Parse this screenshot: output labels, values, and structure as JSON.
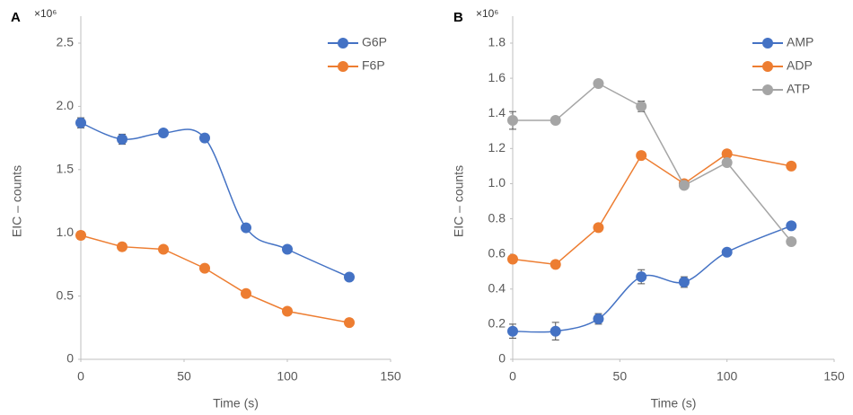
{
  "chart_data": [
    {
      "type": "line",
      "panel_label": "A",
      "y_multiplier": "×10⁶",
      "x_label": "Time (s)",
      "y_label": "EIC – counts",
      "x": [
        0,
        20,
        40,
        60,
        80,
        100,
        130
      ],
      "series": [
        {
          "name": "G6P",
          "color": "#4472c4",
          "smooth": true,
          "values": [
            1.87,
            1.74,
            1.79,
            1.75,
            1.04,
            0.87,
            0.65
          ],
          "errors": [
            0.04,
            0.04,
            0.02,
            0.03,
            0.01,
            0.01,
            0.01
          ]
        },
        {
          "name": "F6P",
          "color": "#ed7d31",
          "smooth": false,
          "values": [
            0.98,
            0.89,
            0.87,
            0.72,
            0.52,
            0.38,
            0.29
          ],
          "errors": [
            0.03,
            0.03,
            0.02,
            0.01,
            0.01,
            0.01,
            0.01
          ]
        }
      ],
      "xlim": [
        0,
        150
      ],
      "xticks": [
        0,
        50,
        100,
        150
      ],
      "ylim": [
        0,
        2.5
      ],
      "yticks": [
        0,
        0.5,
        {
          "value": 1,
          "label": "1.0"
        },
        1.5,
        {
          "value": 2,
          "label": "2.0"
        },
        2.5
      ],
      "grid": false,
      "legend": "upper right"
    },
    {
      "type": "line",
      "panel_label": "B",
      "y_multiplier": "×10⁶",
      "x_label": "Time (s)",
      "y_label": "EIC – counts",
      "x": [
        0,
        20,
        40,
        60,
        80,
        100,
        130
      ],
      "series": [
        {
          "name": "AMP",
          "color": "#4472c4",
          "smooth": true,
          "values": [
            0.16,
            0.16,
            0.23,
            0.47,
            0.44,
            0.61,
            0.76
          ],
          "errors": [
            0.04,
            0.05,
            0.03,
            0.04,
            0.03,
            0.01,
            0.02
          ]
        },
        {
          "name": "ADP",
          "color": "#ed7d31",
          "smooth": false,
          "values": [
            0.57,
            0.54,
            0.75,
            1.16,
            1.0,
            1.17,
            1.1
          ],
          "errors": [
            0.01,
            0.01,
            0.01,
            0.01,
            0.01,
            0.01,
            0.02
          ]
        },
        {
          "name": "ATP",
          "color": "#a5a5a5",
          "smooth": false,
          "values": [
            1.36,
            1.36,
            1.57,
            1.44,
            0.99,
            1.12,
            0.67
          ],
          "errors": [
            0.05,
            0.01,
            0.01,
            0.03,
            0.01,
            0.01,
            0.01
          ]
        }
      ],
      "xlim": [
        0,
        150
      ],
      "xticks": [
        0,
        50,
        100,
        150
      ],
      "ylim": [
        0,
        1.8
      ],
      "yticks": [
        0,
        0.2,
        0.4,
        0.6,
        0.8,
        {
          "value": 1,
          "label": "1.0"
        },
        1.2,
        1.4,
        1.6,
        1.8
      ],
      "grid": false,
      "legend": "upper right"
    }
  ]
}
